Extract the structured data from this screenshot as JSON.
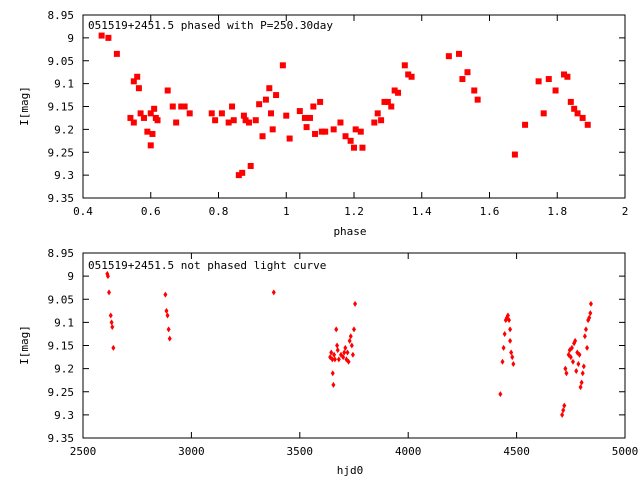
{
  "chart_data": [
    {
      "type": "scatter",
      "title": "051519+2451.5 phased with P=250.30day",
      "xlabel": "phase",
      "ylabel": "I[mag]",
      "xlim": [
        0.4,
        2.0
      ],
      "ylim": [
        8.95,
        9.35
      ],
      "y_inverted": true,
      "grid": false,
      "marker": "filled-square",
      "color": "#ff0000",
      "xticks": [
        "0.4",
        "0.6",
        "0.8",
        "1",
        "1.2",
        "1.4",
        "1.6",
        "1.8",
        "2"
      ],
      "xtick_values": [
        0.4,
        0.6,
        0.8,
        1.0,
        1.2,
        1.4,
        1.6,
        1.8,
        2.0
      ],
      "yticks": [
        "8.95",
        "9",
        "9.05",
        "9.1",
        "9.15",
        "9.2",
        "9.25",
        "9.3",
        "9.35"
      ],
      "ytick_values": [
        8.95,
        9.0,
        9.05,
        9.1,
        9.15,
        9.2,
        9.25,
        9.3,
        9.35
      ],
      "points": [
        [
          0.455,
          8.995
        ],
        [
          0.475,
          9.0
        ],
        [
          0.5,
          9.035
        ],
        [
          0.54,
          9.175
        ],
        [
          0.55,
          9.185
        ],
        [
          0.55,
          9.095
        ],
        [
          0.56,
          9.085
        ],
        [
          0.565,
          9.11
        ],
        [
          0.57,
          9.165
        ],
        [
          0.58,
          9.175
        ],
        [
          0.59,
          9.205
        ],
        [
          0.6,
          9.235
        ],
        [
          0.6,
          9.165
        ],
        [
          0.605,
          9.21
        ],
        [
          0.61,
          9.155
        ],
        [
          0.615,
          9.175
        ],
        [
          0.62,
          9.18
        ],
        [
          0.65,
          9.115
        ],
        [
          0.665,
          9.15
        ],
        [
          0.675,
          9.185
        ],
        [
          0.69,
          9.15
        ],
        [
          0.7,
          9.15
        ],
        [
          0.715,
          9.165
        ],
        [
          0.78,
          9.165
        ],
        [
          0.79,
          9.18
        ],
        [
          0.81,
          9.165
        ],
        [
          0.83,
          9.185
        ],
        [
          0.84,
          9.15
        ],
        [
          0.845,
          9.18
        ],
        [
          0.86,
          9.3
        ],
        [
          0.87,
          9.295
        ],
        [
          0.875,
          9.17
        ],
        [
          0.88,
          9.18
        ],
        [
          0.89,
          9.185
        ],
        [
          0.895,
          9.28
        ],
        [
          0.91,
          9.18
        ],
        [
          0.92,
          9.145
        ],
        [
          0.93,
          9.215
        ],
        [
          0.94,
          9.135
        ],
        [
          0.95,
          9.11
        ],
        [
          0.955,
          9.165
        ],
        [
          0.96,
          9.2
        ],
        [
          0.97,
          9.125
        ],
        [
          0.99,
          9.06
        ],
        [
          1.0,
          9.17
        ],
        [
          1.01,
          9.22
        ],
        [
          1.04,
          9.16
        ],
        [
          1.055,
          9.175
        ],
        [
          1.06,
          9.195
        ],
        [
          1.07,
          9.175
        ],
        [
          1.08,
          9.15
        ],
        [
          1.085,
          9.21
        ],
        [
          1.1,
          9.14
        ],
        [
          1.105,
          9.205
        ],
        [
          1.115,
          9.205
        ],
        [
          1.14,
          9.2
        ],
        [
          1.16,
          9.185
        ],
        [
          1.175,
          9.215
        ],
        [
          1.19,
          9.225
        ],
        [
          1.2,
          9.24
        ],
        [
          1.205,
          9.2
        ],
        [
          1.22,
          9.205
        ],
        [
          1.225,
          9.24
        ],
        [
          1.26,
          9.185
        ],
        [
          1.27,
          9.165
        ],
        [
          1.28,
          9.18
        ],
        [
          1.29,
          9.14
        ],
        [
          1.3,
          9.14
        ],
        [
          1.31,
          9.15
        ],
        [
          1.32,
          9.115
        ],
        [
          1.33,
          9.12
        ],
        [
          1.35,
          9.06
        ],
        [
          1.36,
          9.08
        ],
        [
          1.37,
          9.085
        ],
        [
          1.48,
          9.04
        ],
        [
          1.51,
          9.035
        ],
        [
          1.52,
          9.09
        ],
        [
          1.535,
          9.075
        ],
        [
          1.555,
          9.115
        ],
        [
          1.565,
          9.135
        ],
        [
          1.675,
          9.255
        ],
        [
          1.705,
          9.19
        ],
        [
          1.745,
          9.095
        ],
        [
          1.76,
          9.165
        ],
        [
          1.775,
          9.09
        ],
        [
          1.795,
          9.115
        ],
        [
          1.82,
          9.08
        ],
        [
          1.83,
          9.085
        ],
        [
          1.84,
          9.14
        ],
        [
          1.85,
          9.155
        ],
        [
          1.86,
          9.165
        ],
        [
          1.875,
          9.175
        ],
        [
          1.89,
          9.19
        ]
      ]
    },
    {
      "type": "scatter",
      "title": "051519+2451.5 not phased light curve",
      "xlabel": "hjd0",
      "ylabel": "I[mag]",
      "xlim": [
        2500,
        5000
      ],
      "ylim": [
        8.95,
        9.35
      ],
      "y_inverted": true,
      "grid": false,
      "marker": "filled-diamond",
      "color": "#ff0000",
      "xticks": [
        "2500",
        "3000",
        "3500",
        "4000",
        "4500",
        "5000"
      ],
      "xtick_values": [
        2500,
        3000,
        3500,
        4000,
        4500,
        5000
      ],
      "yticks": [
        "8.95",
        "9",
        "9.05",
        "9.1",
        "9.15",
        "9.2",
        "9.25",
        "9.3",
        "9.35"
      ],
      "ytick_values": [
        8.95,
        9.0,
        9.05,
        9.1,
        9.15,
        9.2,
        9.25,
        9.3,
        9.35
      ],
      "points": [
        [
          2612,
          8.995
        ],
        [
          2615,
          9.0
        ],
        [
          2620,
          9.035
        ],
        [
          2628,
          9.085
        ],
        [
          2632,
          9.1
        ],
        [
          2635,
          9.11
        ],
        [
          2640,
          9.155
        ],
        [
          2880,
          9.04
        ],
        [
          2885,
          9.075
        ],
        [
          2890,
          9.085
        ],
        [
          2895,
          9.115
        ],
        [
          2900,
          9.135
        ],
        [
          3380,
          9.035
        ],
        [
          3640,
          9.175
        ],
        [
          3645,
          9.165
        ],
        [
          3650,
          9.18
        ],
        [
          3652,
          9.21
        ],
        [
          3655,
          9.235
        ],
        [
          3658,
          9.17
        ],
        [
          3662,
          9.18
        ],
        [
          3668,
          9.115
        ],
        [
          3672,
          9.15
        ],
        [
          3675,
          9.16
        ],
        [
          3680,
          9.18
        ],
        [
          3690,
          9.17
        ],
        [
          3700,
          9.175
        ],
        [
          3705,
          9.165
        ],
        [
          3710,
          9.155
        ],
        [
          3715,
          9.18
        ],
        [
          3720,
          9.165
        ],
        [
          3725,
          9.185
        ],
        [
          3730,
          9.14
        ],
        [
          3735,
          9.13
        ],
        [
          3740,
          9.15
        ],
        [
          3745,
          9.17
        ],
        [
          3750,
          9.115
        ],
        [
          3755,
          9.06
        ],
        [
          4425,
          9.255
        ],
        [
          4435,
          9.185
        ],
        [
          4440,
          9.155
        ],
        [
          4445,
          9.125
        ],
        [
          4450,
          9.095
        ],
        [
          4455,
          9.09
        ],
        [
          4460,
          9.085
        ],
        [
          4465,
          9.095
        ],
        [
          4470,
          9.14
        ],
        [
          4475,
          9.165
        ],
        [
          4480,
          9.175
        ],
        [
          4485,
          9.19
        ],
        [
          4470,
          9.115
        ],
        [
          4710,
          9.3
        ],
        [
          4715,
          9.29
        ],
        [
          4720,
          9.28
        ],
        [
          4725,
          9.2
        ],
        [
          4730,
          9.21
        ],
        [
          4740,
          9.17
        ],
        [
          4745,
          9.16
        ],
        [
          4750,
          9.175
        ],
        [
          4755,
          9.155
        ],
        [
          4760,
          9.185
        ],
        [
          4765,
          9.145
        ],
        [
          4770,
          9.14
        ],
        [
          4775,
          9.205
        ],
        [
          4780,
          9.165
        ],
        [
          4785,
          9.19
        ],
        [
          4790,
          9.17
        ],
        [
          4795,
          9.24
        ],
        [
          4800,
          9.23
        ],
        [
          4805,
          9.21
        ],
        [
          4810,
          9.195
        ],
        [
          4815,
          9.13
        ],
        [
          4820,
          9.115
        ],
        [
          4825,
          9.155
        ],
        [
          4830,
          9.095
        ],
        [
          4835,
          9.09
        ],
        [
          4840,
          9.08
        ],
        [
          4843,
          9.06
        ]
      ]
    }
  ]
}
